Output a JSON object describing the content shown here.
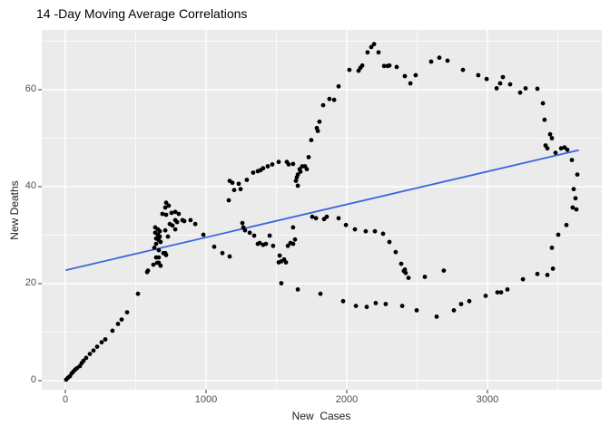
{
  "chart_data": {
    "type": "scatter",
    "title": "14 -Day Moving Average Correlations",
    "xlabel": "New  Cases",
    "ylabel": "New Deaths",
    "x_ticks": [
      0,
      1000,
      2000,
      3000
    ],
    "y_ticks": [
      0,
      20,
      40,
      60
    ],
    "x_minor_ticks": [
      500,
      1500,
      2500,
      3500
    ],
    "y_minor_ticks": [
      10,
      30,
      50,
      70
    ],
    "xlim": [
      -170,
      3840
    ],
    "ylim": [
      -2.4,
      72.4
    ],
    "grid": "white major/minor gridlines on gray panel",
    "legend_position": "none",
    "trend_line": {
      "type": "linear",
      "x1": 6,
      "y1": 22.8,
      "x2": 3645,
      "y2": 47.5
    },
    "points": [
      [
        6,
        0.2
      ],
      [
        19,
        0.6
      ],
      [
        32,
        0.9
      ],
      [
        45,
        1.5
      ],
      [
        58,
        1.9
      ],
      [
        71,
        2.3
      ],
      [
        84,
        2.6
      ],
      [
        103,
        3.0
      ],
      [
        116,
        3.6
      ],
      [
        129,
        4.1
      ],
      [
        148,
        4.7
      ],
      [
        174,
        5.5
      ],
      [
        200,
        6.2
      ],
      [
        226,
        7.0
      ],
      [
        258,
        7.9
      ],
      [
        284,
        8.5
      ],
      [
        335,
        10.3
      ],
      [
        374,
        11.7
      ],
      [
        400,
        12.6
      ],
      [
        439,
        14.1
      ],
      [
        516,
        17.9
      ],
      [
        581,
        22.4
      ],
      [
        626,
        23.9
      ],
      [
        652,
        24.3
      ],
      [
        664,
        25.4
      ],
      [
        697,
        26.3
      ],
      [
        716,
        36.7
      ],
      [
        735,
        36.1
      ],
      [
        710,
        35.7
      ],
      [
        690,
        34.4
      ],
      [
        716,
        34.2
      ],
      [
        755,
        34.6
      ],
      [
        781,
        34.8
      ],
      [
        806,
        34.4
      ],
      [
        832,
        33.1
      ],
      [
        845,
        32.9
      ],
      [
        890,
        33.1
      ],
      [
        923,
        32.3
      ],
      [
        781,
        33.1
      ],
      [
        794,
        32.7
      ],
      [
        742,
        32.3
      ],
      [
        761,
        32.0
      ],
      [
        781,
        31.2
      ],
      [
        710,
        31.0
      ],
      [
        729,
        29.7
      ],
      [
        639,
        31.6
      ],
      [
        658,
        31.2
      ],
      [
        671,
        30.8
      ],
      [
        639,
        30.5
      ],
      [
        658,
        30.1
      ],
      [
        671,
        29.7
      ],
      [
        645,
        29.3
      ],
      [
        664,
        29.0
      ],
      [
        677,
        28.6
      ],
      [
        645,
        28.2
      ],
      [
        632,
        27.4
      ],
      [
        664,
        26.9
      ],
      [
        710,
        26.3
      ],
      [
        716,
        25.9
      ],
      [
        645,
        25.4
      ],
      [
        664,
        24.3
      ],
      [
        677,
        23.7
      ],
      [
        587,
        22.7
      ],
      [
        981,
        30.1
      ],
      [
        1058,
        27.6
      ],
      [
        1116,
        26.3
      ],
      [
        1168,
        25.6
      ],
      [
        1161,
        37.2
      ],
      [
        1200,
        39.3
      ],
      [
        1168,
        41.2
      ],
      [
        1187,
        40.8
      ],
      [
        1232,
        40.6
      ],
      [
        1245,
        39.5
      ],
      [
        1290,
        41.4
      ],
      [
        1335,
        42.9
      ],
      [
        1368,
        43.2
      ],
      [
        1387,
        43.4
      ],
      [
        1406,
        43.8
      ],
      [
        1439,
        44.2
      ],
      [
        1471,
        44.6
      ],
      [
        1516,
        45.1
      ],
      [
        1574,
        45.1
      ],
      [
        1587,
        44.6
      ],
      [
        1619,
        44.7
      ],
      [
        1639,
        41.2
      ],
      [
        1645,
        41.9
      ],
      [
        1652,
        42.5
      ],
      [
        1665,
        43.6
      ],
      [
        1671,
        43.1
      ],
      [
        1684,
        44.2
      ],
      [
        1703,
        44.2
      ],
      [
        1652,
        40.2
      ],
      [
        1716,
        43.6
      ],
      [
        1729,
        46.1
      ],
      [
        1748,
        49.6
      ],
      [
        1787,
        52.1
      ],
      [
        1794,
        51.5
      ],
      [
        1806,
        53.4
      ],
      [
        1832,
        56.8
      ],
      [
        1877,
        58.1
      ],
      [
        1910,
        57.9
      ],
      [
        1942,
        60.7
      ],
      [
        2019,
        64.1
      ],
      [
        2084,
        63.9
      ],
      [
        2097,
        64.5
      ],
      [
        2110,
        65.0
      ],
      [
        2148,
        67.7
      ],
      [
        2174,
        68.8
      ],
      [
        2194,
        69.4
      ],
      [
        2226,
        67.7
      ],
      [
        2265,
        64.9
      ],
      [
        2290,
        64.9
      ],
      [
        2303,
        65.0
      ],
      [
        2355,
        64.7
      ],
      [
        2413,
        62.8
      ],
      [
        2452,
        61.3
      ],
      [
        2490,
        63.0
      ],
      [
        2600,
        65.8
      ],
      [
        2658,
        66.6
      ],
      [
        2716,
        66.0
      ],
      [
        2826,
        64.1
      ],
      [
        2935,
        63.0
      ],
      [
        2994,
        62.2
      ],
      [
        3065,
        60.3
      ],
      [
        3090,
        61.3
      ],
      [
        3110,
        62.6
      ],
      [
        3161,
        61.1
      ],
      [
        3232,
        59.4
      ],
      [
        3271,
        60.3
      ],
      [
        3355,
        60.2
      ],
      [
        3394,
        57.2
      ],
      [
        3406,
        53.8
      ],
      [
        3445,
        50.8
      ],
      [
        3458,
        50.0
      ],
      [
        3413,
        48.5
      ],
      [
        3426,
        47.9
      ],
      [
        3484,
        47.0
      ],
      [
        3523,
        47.9
      ],
      [
        3548,
        48.1
      ],
      [
        3568,
        47.6
      ],
      [
        3600,
        45.5
      ],
      [
        3639,
        42.5
      ],
      [
        3613,
        39.5
      ],
      [
        3626,
        37.6
      ],
      [
        3606,
        35.7
      ],
      [
        3632,
        35.3
      ],
      [
        3561,
        32.1
      ],
      [
        3503,
        30.1
      ],
      [
        3458,
        27.4
      ],
      [
        3465,
        23.1
      ],
      [
        3426,
        21.8
      ],
      [
        3355,
        22.0
      ],
      [
        3252,
        20.9
      ],
      [
        3142,
        18.8
      ],
      [
        3097,
        18.2
      ],
      [
        3071,
        18.2
      ],
      [
        2987,
        17.5
      ],
      [
        2871,
        16.4
      ],
      [
        2813,
        15.8
      ],
      [
        2761,
        14.5
      ],
      [
        2639,
        13.2
      ],
      [
        2497,
        14.5
      ],
      [
        2394,
        15.4
      ],
      [
        2277,
        15.8
      ],
      [
        2206,
        16.0
      ],
      [
        2142,
        15.2
      ],
      [
        2065,
        15.4
      ],
      [
        1974,
        16.4
      ],
      [
        1813,
        17.9
      ],
      [
        1652,
        18.8
      ],
      [
        1535,
        20.1
      ],
      [
        1858,
        33.8
      ],
      [
        1942,
        33.5
      ],
      [
        1994,
        32.1
      ],
      [
        2058,
        31.2
      ],
      [
        2135,
        30.8
      ],
      [
        2200,
        30.8
      ],
      [
        2258,
        30.3
      ],
      [
        2303,
        28.6
      ],
      [
        2348,
        26.5
      ],
      [
        2387,
        24.1
      ],
      [
        2406,
        22.6
      ],
      [
        2413,
        22.9
      ],
      [
        2419,
        22.2
      ],
      [
        2439,
        21.2
      ],
      [
        2555,
        21.4
      ],
      [
        2690,
        22.7
      ],
      [
        1755,
        33.8
      ],
      [
        1781,
        33.5
      ],
      [
        1839,
        33.3
      ],
      [
        1258,
        32.5
      ],
      [
        1265,
        31.6
      ],
      [
        1277,
        31.0
      ],
      [
        1310,
        30.5
      ],
      [
        1342,
        29.9
      ],
      [
        1368,
        28.2
      ],
      [
        1381,
        28.4
      ],
      [
        1406,
        28.0
      ],
      [
        1426,
        28.2
      ],
      [
        1452,
        29.9
      ],
      [
        1477,
        27.8
      ],
      [
        1516,
        24.4
      ],
      [
        1523,
        25.8
      ],
      [
        1535,
        24.6
      ],
      [
        1555,
        25.0
      ],
      [
        1568,
        24.4
      ],
      [
        1581,
        27.8
      ],
      [
        1600,
        28.4
      ],
      [
        1619,
        28.2
      ],
      [
        1619,
        31.6
      ],
      [
        1632,
        29.1
      ]
    ],
    "colors": {
      "panel_background": "#EBEBEB",
      "page_background": "#FFFFFF",
      "point": "#000000",
      "trend_line": "#3B65DC",
      "gridline": "#FFFFFF",
      "tick_label": "#4D4D4D",
      "tick_mark": "#333333",
      "title": "#000000",
      "axis_title": "#1A1A1A"
    }
  }
}
